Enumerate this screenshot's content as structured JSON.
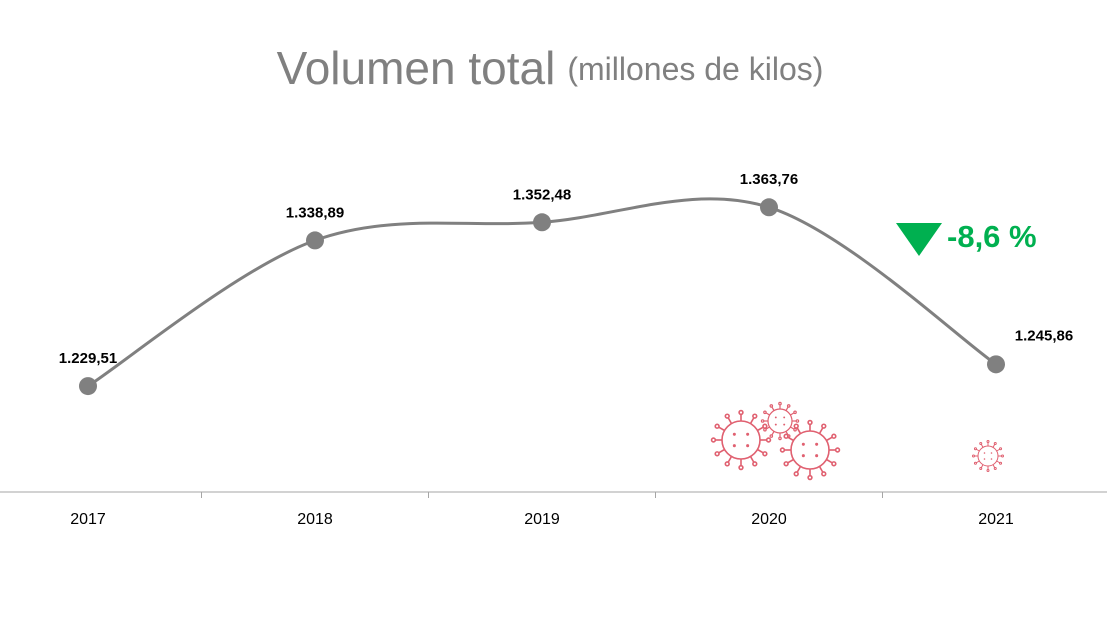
{
  "chart_data": {
    "type": "line",
    "title": "Volumen total",
    "subtitle": "(millones de kilos)",
    "categories": [
      "2017",
      "2018",
      "2019",
      "2020",
      "2021"
    ],
    "values": [
      1229.51,
      1338.89,
      1352.48,
      1363.76,
      1245.86
    ],
    "value_labels": [
      "1.229,51",
      "1.338,89",
      "1.352,48",
      "1.363,76",
      "1.245,86"
    ],
    "color": "#808080",
    "ylim": [
      1150,
      1400
    ],
    "annotation": "-8,6 %",
    "annotation_color": "#00b050"
  }
}
